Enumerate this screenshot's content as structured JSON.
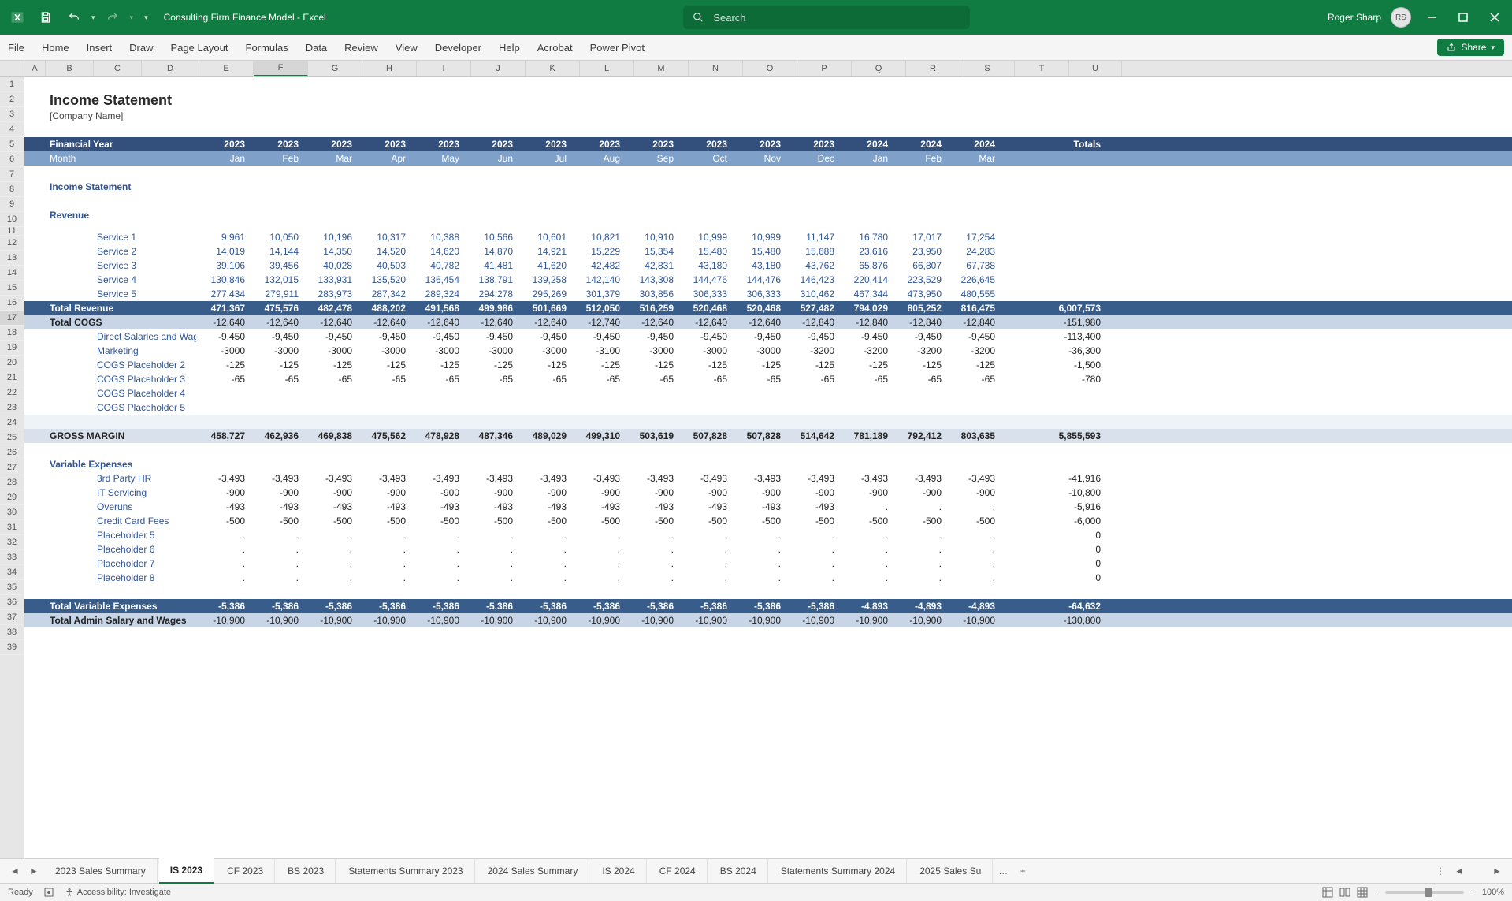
{
  "app": {
    "doc_title": "Consulting Firm Finance Model  -  Excel",
    "user_name": "Roger Sharp",
    "user_initials": "RS",
    "search_placeholder": "Search"
  },
  "ribbon": {
    "tabs": [
      "File",
      "Home",
      "Insert",
      "Draw",
      "Page Layout",
      "Formulas",
      "Data",
      "Review",
      "View",
      "Developer",
      "Help",
      "Acrobat",
      "Power Pivot"
    ],
    "share_label": "Share"
  },
  "columns": {
    "letters": [
      "A",
      "B",
      "C",
      "D",
      "E",
      "F",
      "G",
      "H",
      "I",
      "J",
      "K",
      "L",
      "M",
      "N",
      "O",
      "P",
      "Q",
      "R",
      "S",
      "T",
      "U"
    ],
    "widths": [
      30,
      26,
      60,
      60,
      72,
      68,
      68,
      68,
      68,
      68,
      68,
      68,
      68,
      68,
      68,
      68,
      68,
      68,
      68,
      68,
      68,
      66
    ],
    "selected_index": 5
  },
  "row_count": 39,
  "selected_row": 17,
  "title": "Income Statement",
  "company": "[Company Name]",
  "fy_label": "Financial Year",
  "month_label": "Month",
  "totals_label": "Totals",
  "years": [
    "2023",
    "2023",
    "2023",
    "2023",
    "2023",
    "2023",
    "2023",
    "2023",
    "2023",
    "2023",
    "2023",
    "2023",
    "2024",
    "2024",
    "2024"
  ],
  "months": [
    "Jan",
    "Feb",
    "Mar",
    "Apr",
    "May",
    "Jun",
    "Jul",
    "Aug",
    "Sep",
    "Oct",
    "Nov",
    "Dec",
    "Jan",
    "Feb",
    "Mar"
  ],
  "section_is": "Income Statement",
  "section_rev": "Revenue",
  "revenue_rows": [
    {
      "label": "Service 1",
      "v": [
        "9,961",
        "10,050",
        "10,196",
        "10,317",
        "10,388",
        "10,566",
        "10,601",
        "10,821",
        "10,910",
        "10,999",
        "10,999",
        "11,147",
        "16,780",
        "17,017",
        "17,254"
      ],
      "t": ""
    },
    {
      "label": "Service 2",
      "v": [
        "14,019",
        "14,144",
        "14,350",
        "14,520",
        "14,620",
        "14,870",
        "14,921",
        "15,229",
        "15,354",
        "15,480",
        "15,480",
        "15,688",
        "23,616",
        "23,950",
        "24,283"
      ],
      "t": ""
    },
    {
      "label": "Service 3",
      "v": [
        "39,106",
        "39,456",
        "40,028",
        "40,503",
        "40,782",
        "41,481",
        "41,620",
        "42,482",
        "42,831",
        "43,180",
        "43,180",
        "43,762",
        "65,876",
        "66,807",
        "67,738"
      ],
      "t": ""
    },
    {
      "label": "Service 4",
      "v": [
        "130,846",
        "132,015",
        "133,931",
        "135,520",
        "136,454",
        "138,791",
        "139,258",
        "142,140",
        "143,308",
        "144,476",
        "144,476",
        "146,423",
        "220,414",
        "223,529",
        "226,645"
      ],
      "t": ""
    },
    {
      "label": "Service 5",
      "v": [
        "277,434",
        "279,911",
        "283,973",
        "287,342",
        "289,324",
        "294,278",
        "295,269",
        "301,379",
        "303,856",
        "306,333",
        "306,333",
        "310,462",
        "467,344",
        "473,950",
        "480,555"
      ],
      "t": ""
    }
  ],
  "total_rev": {
    "label": "Total Revenue",
    "v": [
      "471,367",
      "475,576",
      "482,478",
      "488,202",
      "491,568",
      "499,986",
      "501,669",
      "512,050",
      "516,259",
      "520,468",
      "520,468",
      "527,482",
      "794,029",
      "805,252",
      "816,475"
    ],
    "t": "6,007,573"
  },
  "total_cogs": {
    "label": "Total COGS",
    "v": [
      "-12,640",
      "-12,640",
      "-12,640",
      "-12,640",
      "-12,640",
      "-12,640",
      "-12,640",
      "-12,740",
      "-12,640",
      "-12,640",
      "-12,640",
      "-12,840",
      "-12,840",
      "-12,840",
      "-12,840"
    ],
    "t": "-151,980"
  },
  "cogs_rows": [
    {
      "label": "Direct Salaries and Wages",
      "v": [
        "-9,450",
        "-9,450",
        "-9,450",
        "-9,450",
        "-9,450",
        "-9,450",
        "-9,450",
        "-9,450",
        "-9,450",
        "-9,450",
        "-9,450",
        "-9,450",
        "-9,450",
        "-9,450",
        "-9,450"
      ],
      "t": "-113,400"
    },
    {
      "label": "Marketing",
      "v": [
        "-3000",
        "-3000",
        "-3000",
        "-3000",
        "-3000",
        "-3000",
        "-3000",
        "-3100",
        "-3000",
        "-3000",
        "-3000",
        "-3200",
        "-3200",
        "-3200",
        "-3200"
      ],
      "t": "-36,300"
    },
    {
      "label": "COGS Placeholder 2",
      "v": [
        "-125",
        "-125",
        "-125",
        "-125",
        "-125",
        "-125",
        "-125",
        "-125",
        "-125",
        "-125",
        "-125",
        "-125",
        "-125",
        "-125",
        "-125"
      ],
      "t": "-1,500"
    },
    {
      "label": "COGS Placeholder 3",
      "v": [
        "-65",
        "-65",
        "-65",
        "-65",
        "-65",
        "-65",
        "-65",
        "-65",
        "-65",
        "-65",
        "-65",
        "-65",
        "-65",
        "-65",
        "-65"
      ],
      "t": "-780"
    },
    {
      "label": "COGS Placeholder 4",
      "v": [
        "",
        "",
        "",
        "",
        "",
        "",
        "",
        "",
        "",
        "",
        "",
        "",
        "",
        "",
        ""
      ],
      "t": ""
    },
    {
      "label": "COGS Placeholder 5",
      "v": [
        "",
        "",
        "",
        "",
        "",
        "",
        "",
        "",
        "",
        "",
        "",
        "",
        "",
        "",
        ""
      ],
      "t": ""
    }
  ],
  "gross": {
    "label": "GROSS MARGIN",
    "v": [
      "458,727",
      "462,936",
      "469,838",
      "475,562",
      "478,928",
      "487,346",
      "489,029",
      "499,310",
      "503,619",
      "507,828",
      "507,828",
      "514,642",
      "781,189",
      "792,412",
      "803,635"
    ],
    "t": "5,855,593"
  },
  "section_var": "Variable Expenses",
  "var_rows": [
    {
      "label": "3rd Party HR",
      "v": [
        "-3,493",
        "-3,493",
        "-3,493",
        "-3,493",
        "-3,493",
        "-3,493",
        "-3,493",
        "-3,493",
        "-3,493",
        "-3,493",
        "-3,493",
        "-3,493",
        "-3,493",
        "-3,493",
        "-3,493"
      ],
      "t": "-41,916"
    },
    {
      "label": "IT Servicing",
      "v": [
        "-900",
        "-900",
        "-900",
        "-900",
        "-900",
        "-900",
        "-900",
        "-900",
        "-900",
        "-900",
        "-900",
        "-900",
        "-900",
        "-900",
        "-900"
      ],
      "t": "-10,800"
    },
    {
      "label": "Overuns",
      "v": [
        "-493",
        "-493",
        "-493",
        "-493",
        "-493",
        "-493",
        "-493",
        "-493",
        "-493",
        "-493",
        "-493",
        "-493",
        ".",
        ".",
        "."
      ],
      "t": "-5,916"
    },
    {
      "label": "Credit Card Fees",
      "v": [
        "-500",
        "-500",
        "-500",
        "-500",
        "-500",
        "-500",
        "-500",
        "-500",
        "-500",
        "-500",
        "-500",
        "-500",
        "-500",
        "-500",
        "-500"
      ],
      "t": "-6,000"
    },
    {
      "label": "Placeholder 5",
      "v": [
        ".",
        ".",
        ".",
        ".",
        ".",
        ".",
        ".",
        ".",
        ".",
        ".",
        ".",
        ".",
        ".",
        ".",
        "."
      ],
      "t": "0"
    },
    {
      "label": "Placeholder 6",
      "v": [
        ".",
        ".",
        ".",
        ".",
        ".",
        ".",
        ".",
        ".",
        ".",
        ".",
        ".",
        ".",
        ".",
        ".",
        "."
      ],
      "t": "0"
    },
    {
      "label": "Placeholder 7",
      "v": [
        ".",
        ".",
        ".",
        ".",
        ".",
        ".",
        ".",
        ".",
        ".",
        ".",
        ".",
        ".",
        ".",
        ".",
        "."
      ],
      "t": "0"
    },
    {
      "label": "Placeholder 8",
      "v": [
        ".",
        ".",
        ".",
        ".",
        ".",
        ".",
        ".",
        ".",
        ".",
        ".",
        ".",
        ".",
        ".",
        ".",
        "."
      ],
      "t": "0"
    }
  ],
  "total_var": {
    "label": "Total Variable Expenses",
    "v": [
      "-5,386",
      "-5,386",
      "-5,386",
      "-5,386",
      "-5,386",
      "-5,386",
      "-5,386",
      "-5,386",
      "-5,386",
      "-5,386",
      "-5,386",
      "-5,386",
      "-4,893",
      "-4,893",
      "-4,893"
    ],
    "t": "-64,632"
  },
  "total_admin": {
    "label": "Total Admin Salary and Wages",
    "v": [
      "-10,900",
      "-10,900",
      "-10,900",
      "-10,900",
      "-10,900",
      "-10,900",
      "-10,900",
      "-10,900",
      "-10,900",
      "-10,900",
      "-10,900",
      "-10,900",
      "-10,900",
      "-10,900",
      "-10,900"
    ],
    "t": "-130,800"
  },
  "sheets": [
    "2023 Sales Summary",
    "IS 2023",
    "CF 2023",
    "BS 2023",
    "Statements Summary 2023",
    "2024 Sales Summary",
    "IS 2024",
    "CF 2024",
    "BS 2024",
    "Statements Summary 2024",
    "2025 Sales Su"
  ],
  "active_sheet": 1,
  "status": {
    "ready": "Ready",
    "access": "Accessibility: Investigate",
    "zoom": "100%"
  }
}
